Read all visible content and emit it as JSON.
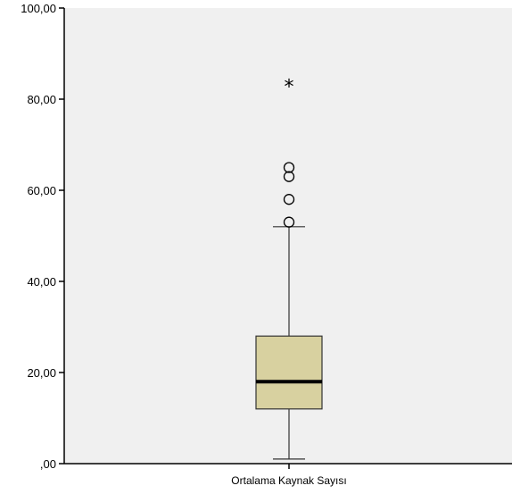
{
  "chart_data": {
    "type": "boxplot",
    "categories": [
      "Ortalama Kaynak Sayısı"
    ],
    "box": {
      "min": 1,
      "q1": 12,
      "median": 18,
      "q3": 28,
      "whisker_high": 52
    },
    "outliers": [
      53,
      58,
      63,
      65
    ],
    "extremes": [
      83
    ],
    "ylim": [
      0,
      100
    ],
    "yticks": [
      0,
      20,
      40,
      60,
      80,
      100
    ],
    "ytick_labels": [
      ",00",
      "20,00",
      "40,00",
      "60,00",
      "80,00",
      "100,00"
    ],
    "xlabel": "",
    "ylabel": "",
    "grid": false,
    "colors": {
      "plot_background": "#f0f0f0",
      "box_fill": "#d8d1a0",
      "box_stroke": "#333333",
      "median_line": "#000000"
    }
  }
}
